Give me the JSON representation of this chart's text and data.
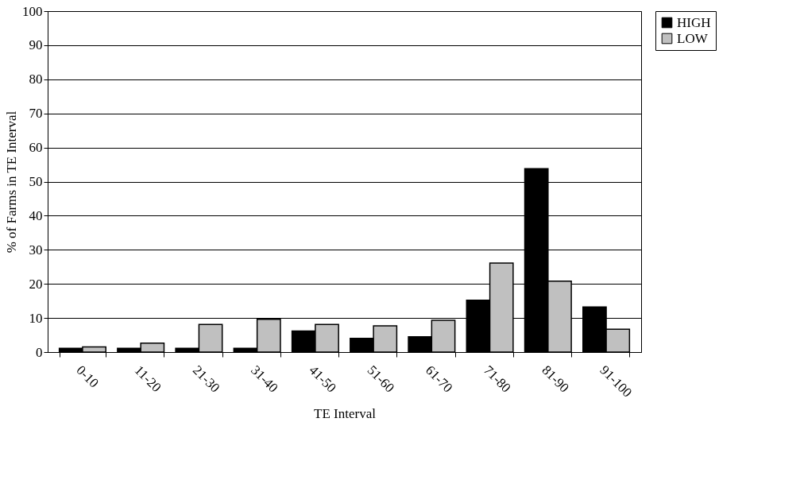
{
  "chart_data": {
    "type": "bar",
    "xlabel": "TE Interval",
    "ylabel": "% of Farms in TE Interval",
    "categories": [
      "0-10",
      "11-20",
      "21-30",
      "31-40",
      "41-50",
      "51-60",
      "61-70",
      "71-80",
      "81-90",
      "91-100"
    ],
    "series": [
      {
        "name": "HIGH",
        "color": "#000000",
        "values": [
          1.1,
          1.1,
          1.1,
          1.1,
          6.2,
          4.0,
          4.5,
          15.2,
          53.8,
          13.2
        ]
      },
      {
        "name": "LOW",
        "color": "#c0c0c0",
        "values": [
          1.5,
          2.6,
          8.1,
          9.6,
          8.1,
          7.7,
          9.3,
          26.1,
          20.8,
          6.7
        ]
      }
    ],
    "ylim": [
      0,
      100
    ],
    "yticks": [
      0,
      10,
      20,
      30,
      40,
      50,
      60,
      70,
      80,
      90,
      100
    ],
    "grid": "y",
    "legend": "right"
  }
}
